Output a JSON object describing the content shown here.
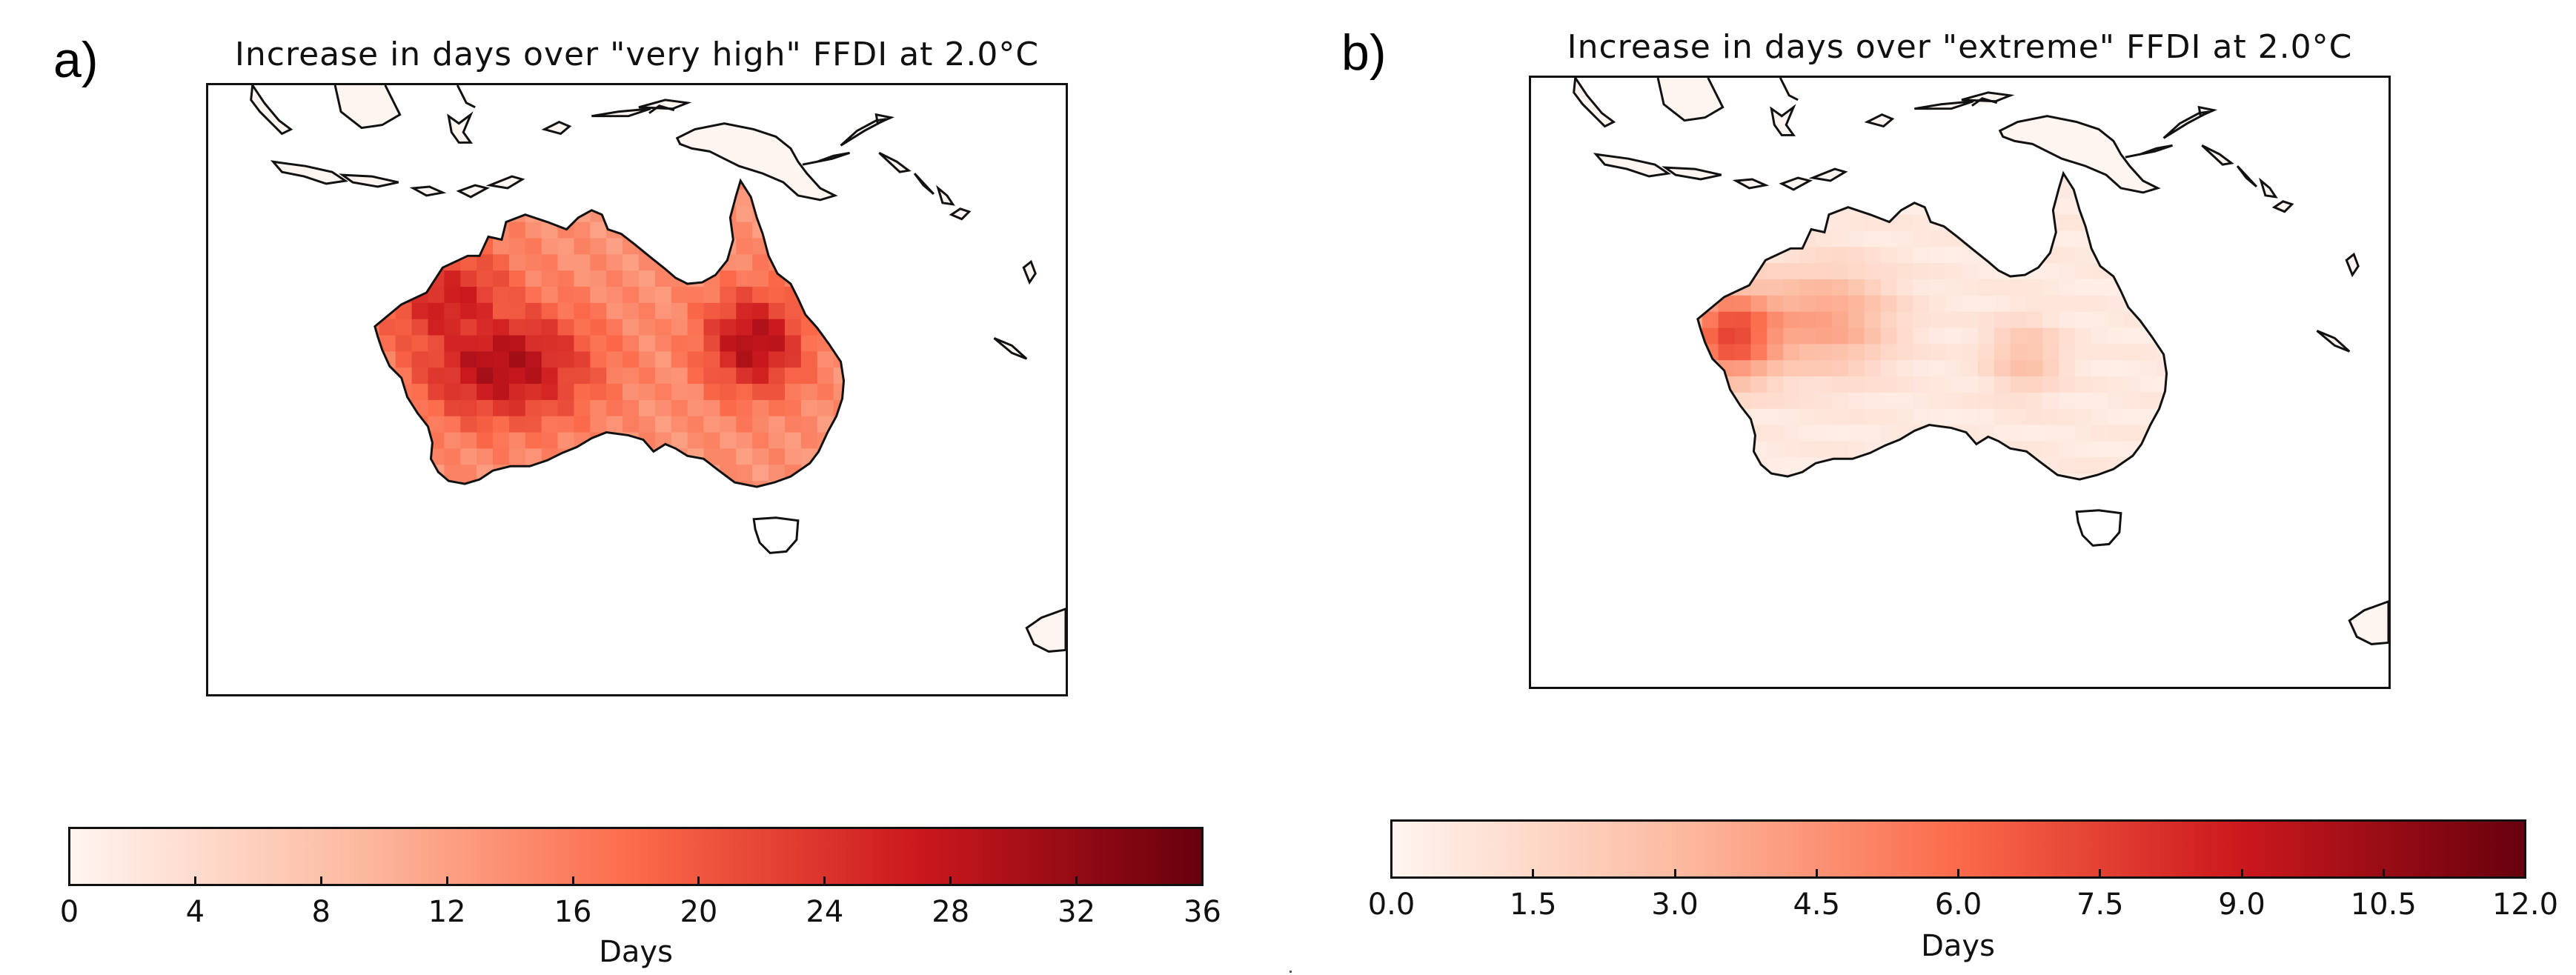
{
  "panels": [
    {
      "letter": "a)",
      "title": "Increase in days over \"very high\" FFDI at 2.0°C",
      "colorbar": {
        "label": "Days",
        "ticks": [
          "0",
          "4",
          "8",
          "12",
          "16",
          "20",
          "24",
          "28",
          "32",
          "36"
        ],
        "min": 0,
        "max": 36,
        "colormap": "Reds"
      },
      "field_intensity": "high"
    },
    {
      "letter": "b)",
      "title": "Increase in days over \"extreme\" FFDI at 2.0°C",
      "colorbar": {
        "label": "Days",
        "ticks": [
          "0.0",
          "1.5",
          "3.0",
          "4.5",
          "6.0",
          "7.5",
          "9.0",
          "10.5",
          "12.0"
        ],
        "min": 0,
        "max": 12,
        "colormap": "Reds"
      },
      "field_intensity": "low"
    }
  ],
  "colors": {
    "reds_low": "#fff5f0",
    "reds_mid1": "#fcbba1",
    "reds_mid2": "#fb6a4a",
    "reds_mid3": "#cb181d",
    "reds_high": "#67000d",
    "coastline": "#111111"
  }
}
